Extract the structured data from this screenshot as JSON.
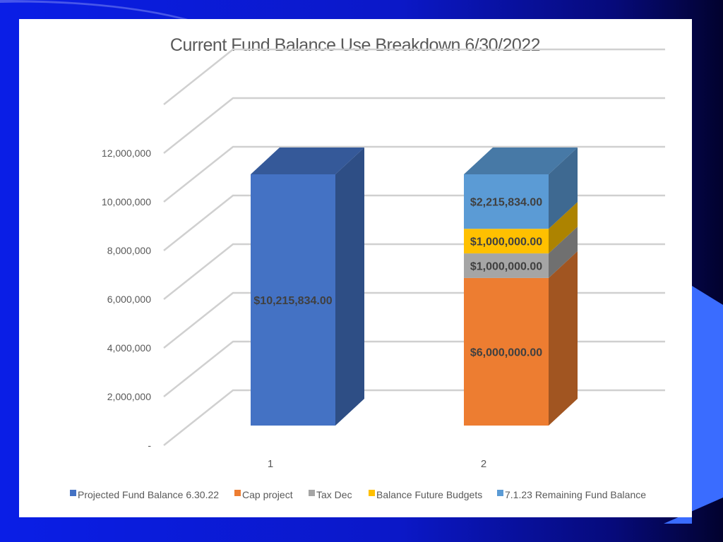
{
  "chart_data": {
    "type": "bar",
    "stacked": true,
    "three_d": true,
    "title": "Current Fund Balance Use Breakdown 6/30/2022",
    "xlabel": "",
    "ylabel": "",
    "ylim": [
      0,
      14000000
    ],
    "y_ticks": [
      {
        "value": 0,
        "label": "-"
      },
      {
        "value": 2000000,
        "label": "2,000,000"
      },
      {
        "value": 4000000,
        "label": "4,000,000"
      },
      {
        "value": 6000000,
        "label": "6,000,000"
      },
      {
        "value": 8000000,
        "label": "8,000,000"
      },
      {
        "value": 10000000,
        "label": "10,000,000"
      },
      {
        "value": 12000000,
        "label": "12,000,000"
      }
    ],
    "categories": [
      "1",
      "2"
    ],
    "grid": true,
    "legend_position": "bottom",
    "series": [
      {
        "name": "Projected Fund Balance 6.30.22",
        "color": "#4472C4",
        "values": [
          10215834,
          0
        ],
        "labels": [
          "$10,215,834.00",
          ""
        ]
      },
      {
        "name": "Cap project",
        "color": "#ED7D31",
        "values": [
          0,
          6000000
        ],
        "labels": [
          "",
          "$6,000,000.00"
        ]
      },
      {
        "name": "Tax Dec",
        "color": "#A5A5A5",
        "values": [
          0,
          1000000
        ],
        "labels": [
          "",
          "$1,000,000.00"
        ]
      },
      {
        "name": "Balance Future Budgets",
        "color": "#FFC000",
        "values": [
          0,
          1000000
        ],
        "labels": [
          "",
          "$1,000,000.00"
        ]
      },
      {
        "name": "7.1.23 Remaining Fund Balance",
        "color": "#5B9BD5",
        "values": [
          0,
          2215834
        ],
        "labels": [
          "",
          "$2,215,834.00"
        ]
      }
    ]
  }
}
